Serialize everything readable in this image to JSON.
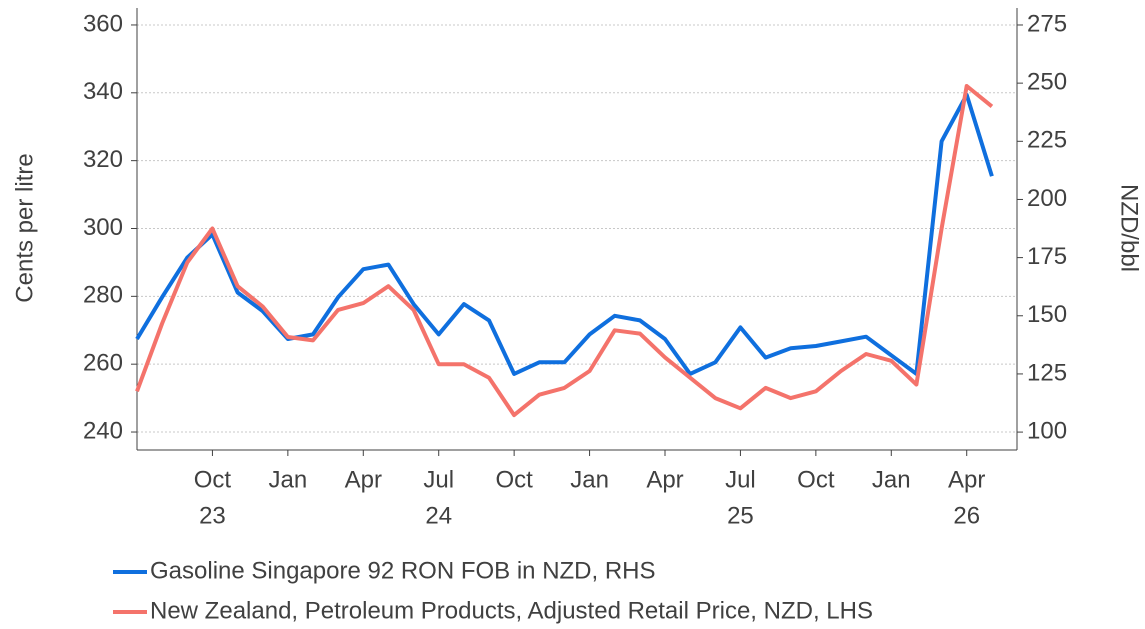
{
  "chart_data": {
    "type": "line",
    "ylabel": "Cents per litre",
    "y2label": "NZD/bbl",
    "x": [
      "2023-07",
      "2023-08",
      "2023-09",
      "2023-10",
      "2023-11",
      "2023-12",
      "2024-01",
      "2024-02",
      "2024-03",
      "2024-04",
      "2024-05",
      "2024-06",
      "2024-07",
      "2024-08",
      "2024-09",
      "2024-10",
      "2024-11",
      "2024-12",
      "2025-01",
      "2025-02",
      "2025-03",
      "2025-04",
      "2025-05",
      "2025-06",
      "2025-07",
      "2025-08",
      "2025-09",
      "2025-10",
      "2025-11",
      "2025-12",
      "2026-01",
      "2026-02",
      "2026-03",
      "2026-04",
      "2026-05"
    ],
    "xlim": [
      "2023-07",
      "2026-06"
    ],
    "xticks": [
      {
        "value": "2023-10",
        "label": "Oct"
      },
      {
        "value": "2024-01",
        "label": "Jan"
      },
      {
        "value": "2024-04",
        "label": "Apr"
      },
      {
        "value": "2024-07",
        "label": "Jul"
      },
      {
        "value": "2024-10",
        "label": "Oct"
      },
      {
        "value": "2025-01",
        "label": "Jan"
      },
      {
        "value": "2025-04",
        "label": "Apr"
      },
      {
        "value": "2025-07",
        "label": "Jul"
      },
      {
        "value": "2025-10",
        "label": "Oct"
      },
      {
        "value": "2026-01",
        "label": "Jan"
      },
      {
        "value": "2026-04",
        "label": "Apr"
      }
    ],
    "xtick_years": [
      {
        "value": "2023-10",
        "label": "23"
      },
      {
        "value": "2024-07",
        "label": "24"
      },
      {
        "value": "2025-07",
        "label": "25"
      },
      {
        "value": "2026-04",
        "label": "26"
      }
    ],
    "ylim": [
      234.7,
      365
    ],
    "yticks": [
      240,
      260,
      280,
      300,
      320,
      340,
      360
    ],
    "y2lim": [
      92.3,
      282.3
    ],
    "y2ticks": [
      100,
      125,
      150,
      175,
      200,
      225,
      250,
      275
    ],
    "grid": true,
    "legend": "bottom",
    "series": [
      {
        "name": "Gasoline Singapore 92 RON FOB in NZD, RHS",
        "color": "#0f6fde",
        "axis": "y2",
        "values": [
          140,
          158,
          175,
          185,
          160,
          152,
          140,
          142,
          158,
          170,
          172,
          155,
          142,
          155,
          148,
          125,
          130,
          130,
          142,
          150,
          148,
          140,
          125,
          130,
          145,
          132,
          136,
          137,
          139,
          141,
          133,
          125,
          225,
          245,
          210
        ]
      },
      {
        "name": "New Zealand, Petroleum Products, Adjusted Retail Price, NZD, LHS",
        "color": "#f4736b",
        "values": [
          252,
          272,
          290,
          300,
          283,
          277,
          268,
          267,
          276,
          278,
          283,
          276,
          260,
          260,
          256,
          245,
          251,
          253,
          258,
          270,
          269,
          262,
          256,
          250,
          247,
          253,
          250,
          252,
          258,
          263,
          261,
          254,
          300,
          342,
          336
        ]
      }
    ]
  }
}
